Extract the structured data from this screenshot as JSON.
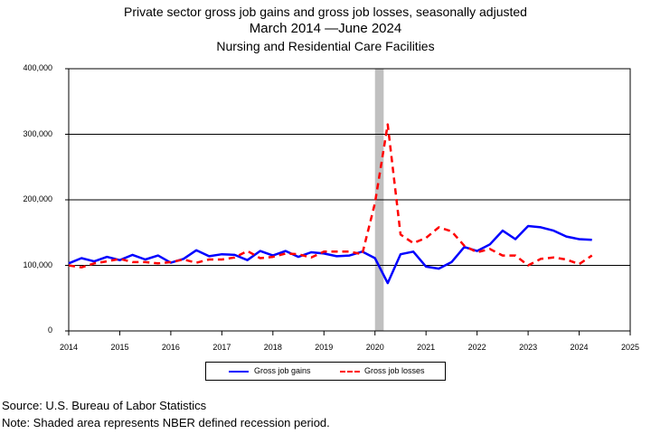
{
  "title": {
    "line1": "Private sector gross job gains and gross job losses, seasonally adjusted",
    "line2": "March 2014 —June 2024",
    "line3": "Nursing and Residential Care Facilities"
  },
  "footnotes": {
    "source": "Source: U.S. Bureau of Labor Statistics",
    "note": "Note: Shaded area represents NBER defined recession period."
  },
  "legend": {
    "gains": "Gross job gains",
    "losses": "Gross job losses"
  },
  "colors": {
    "gains": "#0000ff",
    "losses": "#ff0000",
    "recession": "#c0c0c0"
  },
  "chart_data": {
    "type": "line",
    "title": "Private sector gross job gains and gross job losses, seasonally adjusted",
    "subtitle": "March 2014 —June 2024 / Nursing and Residential Care Facilities",
    "xlabel": "",
    "ylabel": "",
    "xlim": [
      2014,
      2025
    ],
    "ylim": [
      0,
      400000
    ],
    "x_ticks": [
      2014,
      2015,
      2016,
      2017,
      2018,
      2019,
      2020,
      2021,
      2022,
      2023,
      2024,
      2025
    ],
    "y_ticks": [
      0,
      100000,
      200000,
      300000,
      400000
    ],
    "y_tick_labels": [
      "0",
      "100,000",
      "200,000",
      "300,000",
      "400,000"
    ],
    "grid": "horizontal",
    "legend_position": "bottom",
    "recession_shading": [
      [
        2020.0,
        2020.17
      ]
    ],
    "x": [
      2014.0,
      2014.25,
      2014.5,
      2014.75,
      2015.0,
      2015.25,
      2015.5,
      2015.75,
      2016.0,
      2016.25,
      2016.5,
      2016.75,
      2017.0,
      2017.25,
      2017.5,
      2017.75,
      2018.0,
      2018.25,
      2018.5,
      2018.75,
      2019.0,
      2019.25,
      2019.5,
      2019.75,
      2020.0,
      2020.25,
      2020.5,
      2020.75,
      2021.0,
      2021.25,
      2021.5,
      2021.75,
      2022.0,
      2022.25,
      2022.5,
      2022.75,
      2023.0,
      2023.25,
      2023.5,
      2023.75,
      2024.0,
      2024.25
    ],
    "series": [
      {
        "name": "Gross job gains",
        "values": [
          103000,
          111000,
          106000,
          113000,
          108000,
          116000,
          109000,
          115000,
          104000,
          110000,
          123000,
          114000,
          117000,
          116000,
          108000,
          122000,
          115000,
          122000,
          113000,
          120000,
          118000,
          114000,
          115000,
          121000,
          111000,
          73000,
          117000,
          121000,
          98000,
          95000,
          105000,
          128000,
          122000,
          132000,
          153000,
          140000,
          160000,
          158000,
          153000,
          144000,
          140000,
          139000
        ]
      },
      {
        "name": "Gross job losses",
        "values": [
          100000,
          97000,
          103000,
          106000,
          110000,
          105000,
          105000,
          103000,
          105000,
          109000,
          104000,
          109000,
          109000,
          112000,
          122000,
          111000,
          113000,
          118000,
          117000,
          112000,
          121000,
          121000,
          121000,
          117000,
          195000,
          315000,
          147000,
          134000,
          142000,
          158000,
          152000,
          130000,
          120000,
          125000,
          115000,
          115000,
          100000,
          110000,
          112000,
          109000,
          102000,
          115000
        ]
      }
    ]
  }
}
